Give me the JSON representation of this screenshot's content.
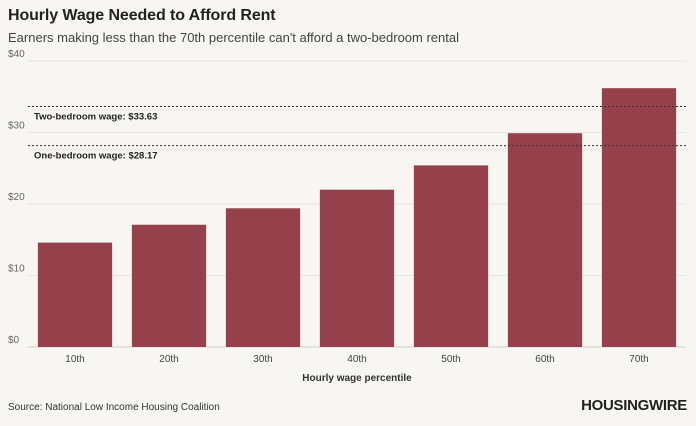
{
  "header": {
    "title": "Hourly Wage Needed to Afford Rent",
    "subtitle": "Earners making less than the 70th percentile can't afford a two-bedroom rental"
  },
  "footer": {
    "source": "Source: National Low Income Housing Coalition",
    "logo": "HOUSINGWIRE"
  },
  "colors": {
    "bar": "#96404b",
    "background": "#f7f6f3",
    "grid": "#e6e4df",
    "reference_line": "#333333"
  },
  "chart_data": {
    "type": "bar",
    "title": "Hourly Wage Needed to Afford Rent",
    "subtitle": "Earners making less than the 70th percentile can't afford a two-bedroom rental",
    "xlabel": "Hourly wage percentile",
    "ylabel": "",
    "categories": [
      "10th",
      "20th",
      "30th",
      "40th",
      "50th",
      "60th",
      "70th"
    ],
    "values": [
      14.6,
      17.1,
      19.4,
      22.0,
      25.4,
      29.9,
      36.2
    ],
    "ylim": [
      0,
      40
    ],
    "yticks": [
      0,
      10,
      20,
      30,
      40
    ],
    "ytick_labels": [
      "$0",
      "$10",
      "$20",
      "$30",
      "$40"
    ],
    "grid": true,
    "reference_lines": [
      {
        "label": "Two-bedroom wage: $33.63",
        "value": 33.63
      },
      {
        "label": "One-bedroom wage: $28.17",
        "value": 28.17
      }
    ]
  }
}
